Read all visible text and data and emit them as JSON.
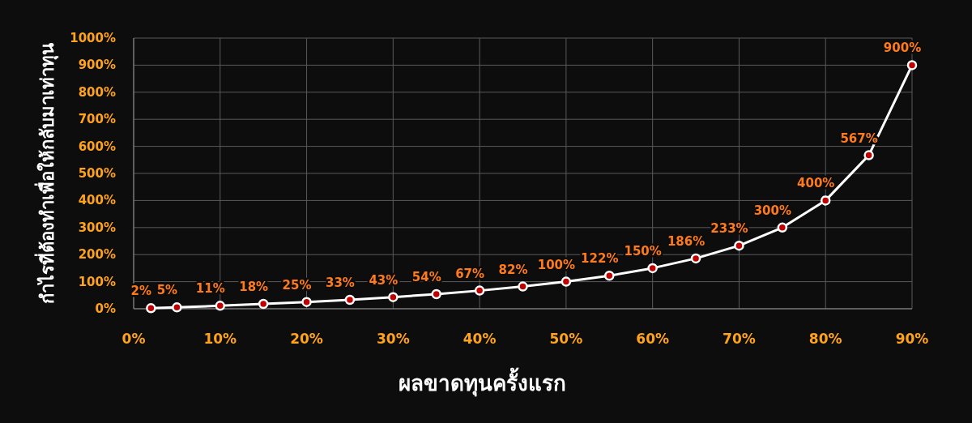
{
  "chart_data": {
    "type": "line",
    "xlabel": "ผลขาดทุนครั้งแรก",
    "ylabel": "กำไรที่ต้องทำเพื่อให้กลับมาเท่าทุน",
    "series": [
      {
        "color": "#ffffff",
        "x": [
          2,
          5,
          10,
          15,
          20,
          25,
          30,
          35,
          40,
          45,
          50,
          55,
          60,
          65,
          70,
          75,
          80,
          85,
          90
        ],
        "values": [
          2,
          5,
          11,
          18,
          25,
          33,
          43,
          54,
          67,
          82,
          100,
          122,
          150,
          186,
          233,
          300,
          400,
          567,
          900
        ],
        "value_labels": [
          "2%",
          "5%",
          "11%",
          "18%",
          "25%",
          "33%",
          "43%",
          "54%",
          "67%",
          "82%",
          "100%",
          "122%",
          "150%",
          "186%",
          "233%",
          "300%",
          "400%",
          "567%",
          "900%"
        ]
      }
    ],
    "xlim": [
      0,
      90
    ],
    "xticks": [
      {
        "value": 0,
        "label": "0%"
      },
      {
        "value": 10,
        "label": "10%"
      },
      {
        "value": 20,
        "label": "20%"
      },
      {
        "value": 30,
        "label": "30%"
      },
      {
        "value": 40,
        "label": "40%"
      },
      {
        "value": 50,
        "label": "50%"
      },
      {
        "value": 60,
        "label": "60%"
      },
      {
        "value": 70,
        "label": "70%"
      },
      {
        "value": 80,
        "label": "80%"
      },
      {
        "value": 90,
        "label": "90%"
      }
    ],
    "ylim": [
      0,
      1000
    ],
    "yticks": [
      {
        "value": 0,
        "label": "0%"
      },
      {
        "value": 100,
        "label": "100%"
      },
      {
        "value": 200,
        "label": "200%"
      },
      {
        "value": 300,
        "label": "300%"
      },
      {
        "value": 400,
        "label": "400%"
      },
      {
        "value": 500,
        "label": "500%"
      },
      {
        "value": 600,
        "label": "600%"
      },
      {
        "value": 700,
        "label": "700%"
      },
      {
        "value": 800,
        "label": "800%"
      },
      {
        "value": 900,
        "label": "900%"
      },
      {
        "value": 1000,
        "label": "1000%"
      }
    ],
    "grid": true,
    "marker": "circle",
    "line_style": "solid"
  }
}
